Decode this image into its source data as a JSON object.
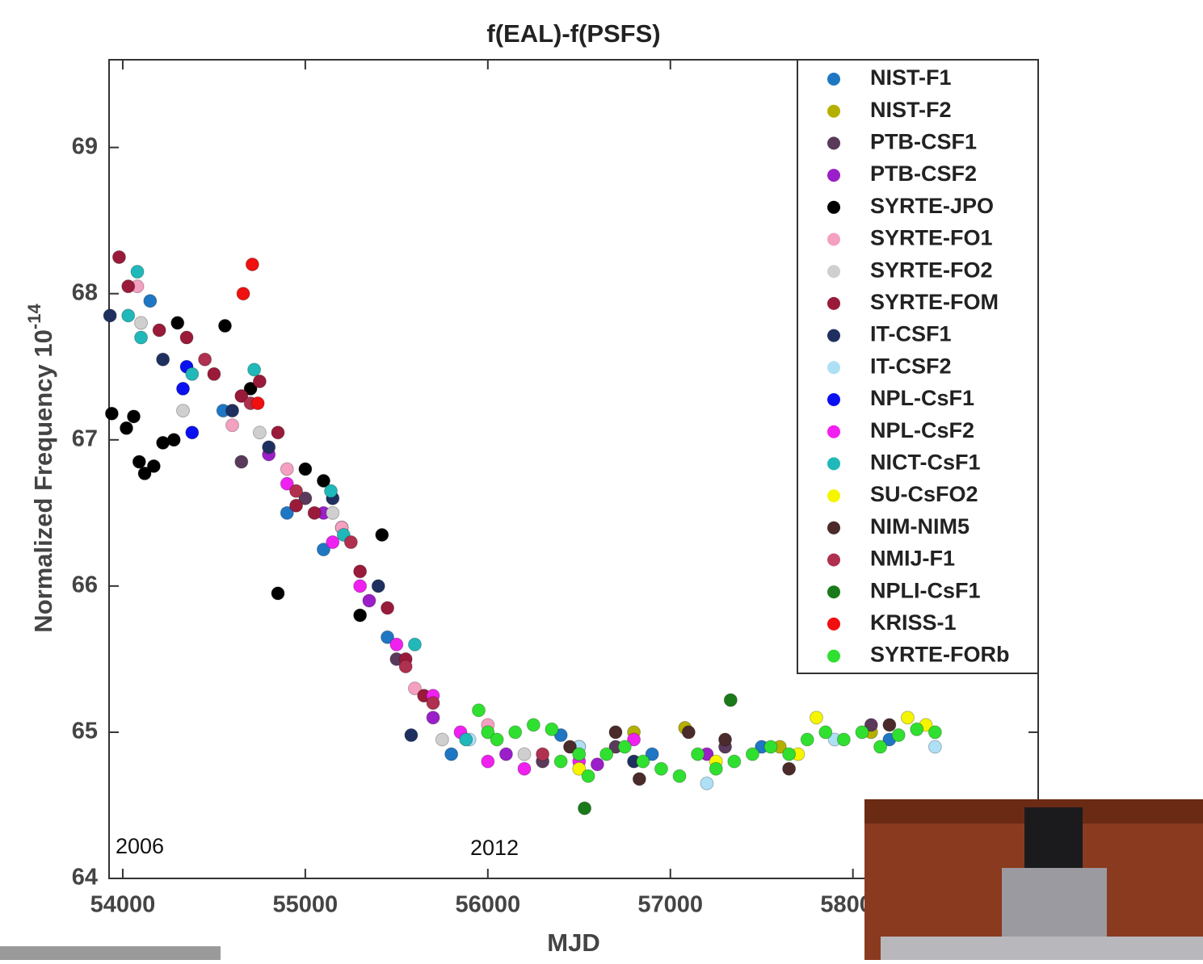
{
  "chart_data": {
    "type": "scatter",
    "title": "f(EAL)-f(PSFS)",
    "x_label": "MJD",
    "y_label": "Normalized Frequency 10",
    "y_label_exponent": "-14",
    "annotations": [
      "2006",
      "2012"
    ],
    "xlim": [
      53925,
      59015
    ],
    "ylim": [
      64,
      69.6
    ],
    "xticks": [
      54000,
      55000,
      56000,
      57000,
      58000
    ],
    "yticks": [
      64,
      65,
      66,
      67,
      68,
      69
    ],
    "legend": "upper right",
    "series": [
      {
        "name": "NIST-F1",
        "color": "#1f77c4",
        "x": [
          54150,
          54550,
          54900,
          55100,
          55450,
          55800,
          56400,
          56900,
          57500,
          58200
        ],
        "values": [
          67.95,
          67.2,
          66.5,
          66.25,
          65.65,
          64.85,
          64.98,
          64.85,
          64.9,
          64.95
        ]
      },
      {
        "name": "NIST-F2",
        "color": "#b5b000",
        "x": [
          56800,
          57080,
          57600,
          58100
        ],
        "values": [
          65.0,
          65.03,
          64.9,
          65.0
        ]
      },
      {
        "name": "PTB-CSF1",
        "color": "#5a3a5a",
        "x": [
          54650,
          55000,
          55500,
          56300,
          56700,
          57300,
          58100
        ],
        "values": [
          66.85,
          66.6,
          65.5,
          64.8,
          64.9,
          64.9,
          65.05
        ]
      },
      {
        "name": "PTB-CSF2",
        "color": "#9b1fc9",
        "x": [
          54800,
          55100,
          55350,
          55700,
          56100,
          56600,
          57200
        ],
        "values": [
          66.9,
          66.5,
          65.9,
          65.1,
          64.85,
          64.78,
          64.85
        ]
      },
      {
        "name": "SYRTE-JPO",
        "color": "#000000",
        "x": [
          53940,
          54020,
          54060,
          54090,
          54120,
          54170,
          54220,
          54280,
          54300,
          54560,
          54700,
          54850,
          55000,
          55100,
          55200,
          55420,
          55300
        ],
        "values": [
          67.18,
          67.08,
          67.16,
          66.85,
          66.77,
          66.82,
          66.98,
          67.0,
          67.8,
          67.78,
          67.35,
          65.95,
          66.8,
          66.72,
          66.4,
          66.35,
          65.8
        ]
      },
      {
        "name": "SYRTE-FO1",
        "color": "#f4a0c0",
        "x": [
          54080,
          54600,
          54900,
          55200,
          55600,
          56000,
          56500
        ],
        "values": [
          68.05,
          67.1,
          66.8,
          66.4,
          65.3,
          65.05,
          64.9
        ]
      },
      {
        "name": "SYRTE-FO2",
        "color": "#cfcfcf",
        "x": [
          54100,
          54330,
          54750,
          55150,
          55750,
          56200
        ],
        "values": [
          67.8,
          67.2,
          67.05,
          66.5,
          64.95,
          64.85
        ]
      },
      {
        "name": "SYRTE-FOM",
        "color": "#9a1a3a",
        "x": [
          53980,
          54030,
          54200,
          54350,
          54500,
          54650,
          54750,
          54850,
          54950,
          55050,
          55300,
          55450,
          55550,
          55650
        ],
        "values": [
          68.25,
          68.05,
          67.75,
          67.7,
          67.45,
          67.3,
          67.4,
          67.05,
          66.55,
          66.5,
          66.1,
          65.85,
          65.5,
          65.25
        ]
      },
      {
        "name": "IT-CSF1",
        "color": "#1f3060",
        "x": [
          53930,
          54220,
          54600,
          54800,
          55150,
          55400,
          55580,
          56800
        ],
        "values": [
          67.85,
          67.55,
          67.2,
          66.95,
          66.6,
          66.0,
          64.98,
          64.8
        ]
      },
      {
        "name": "IT-CSF2",
        "color": "#aee0f5",
        "x": [
          55900,
          56500,
          57200,
          57900,
          58450
        ],
        "values": [
          64.95,
          64.9,
          64.65,
          64.95,
          64.9
        ]
      },
      {
        "name": "NPL-CsF1",
        "color": "#0a10f0",
        "x": [
          54350,
          54380,
          54330
        ],
        "values": [
          67.5,
          67.05,
          67.35
        ]
      },
      {
        "name": "NPL-CsF2",
        "color": "#f020f0",
        "x": [
          54900,
          55150,
          55300,
          55500,
          55700,
          55850,
          56000,
          56200,
          56500,
          56800
        ],
        "values": [
          66.7,
          66.3,
          66.0,
          65.6,
          65.25,
          65.0,
          64.8,
          64.75,
          64.8,
          64.95
        ]
      },
      {
        "name": "NICT-CsF1",
        "color": "#20b8b8",
        "x": [
          54030,
          54080,
          54100,
          54380,
          54720,
          55140,
          55210,
          55600,
          55880
        ],
        "values": [
          67.85,
          68.15,
          67.7,
          67.45,
          67.48,
          66.65,
          66.35,
          65.6,
          64.95
        ]
      },
      {
        "name": "SU-CsFO2",
        "color": "#f5f500",
        "x": [
          56500,
          57250,
          57700,
          57800,
          58300,
          58400
        ],
        "values": [
          64.75,
          64.8,
          64.85,
          65.1,
          65.1,
          65.05
        ]
      },
      {
        "name": "NIM-NIM5",
        "color": "#4a2a2a",
        "x": [
          56450,
          56700,
          56830,
          57100,
          57300,
          57650,
          58200
        ],
        "values": [
          64.9,
          65.0,
          64.68,
          65.0,
          64.95,
          64.75,
          65.05
        ]
      },
      {
        "name": "NMIJ-F1",
        "color": "#b03050",
        "x": [
          54450,
          54700,
          54950,
          55250,
          55550,
          55700,
          56300
        ],
        "values": [
          67.55,
          67.25,
          66.65,
          66.3,
          65.45,
          65.2,
          64.85
        ]
      },
      {
        "name": "NPLI-CsF1",
        "color": "#1a7a1a",
        "x": [
          56530,
          57330
        ],
        "values": [
          64.48,
          65.22
        ]
      },
      {
        "name": "KRISS-1",
        "color": "#f01010",
        "x": [
          54660,
          54710,
          54740
        ],
        "values": [
          68.0,
          68.2,
          67.25
        ]
      },
      {
        "name": "SYRTE-FORb",
        "color": "#30e030",
        "x": [
          55950,
          56000,
          56050,
          56150,
          56250,
          56350,
          56400,
          56500,
          56550,
          56650,
          56750,
          56850,
          56950,
          57050,
          57150,
          57250,
          57350,
          57450,
          57550,
          57650,
          57750,
          57850,
          57950,
          58050,
          58150,
          58250,
          58350,
          58450
        ],
        "values": [
          65.15,
          65.0,
          64.95,
          65.0,
          65.05,
          65.02,
          64.8,
          64.85,
          64.7,
          64.85,
          64.9,
          64.8,
          64.75,
          64.7,
          64.85,
          64.75,
          64.8,
          64.85,
          64.9,
          64.85,
          64.95,
          65.0,
          64.95,
          65.0,
          64.9,
          64.98,
          65.02,
          65.0
        ]
      }
    ]
  }
}
